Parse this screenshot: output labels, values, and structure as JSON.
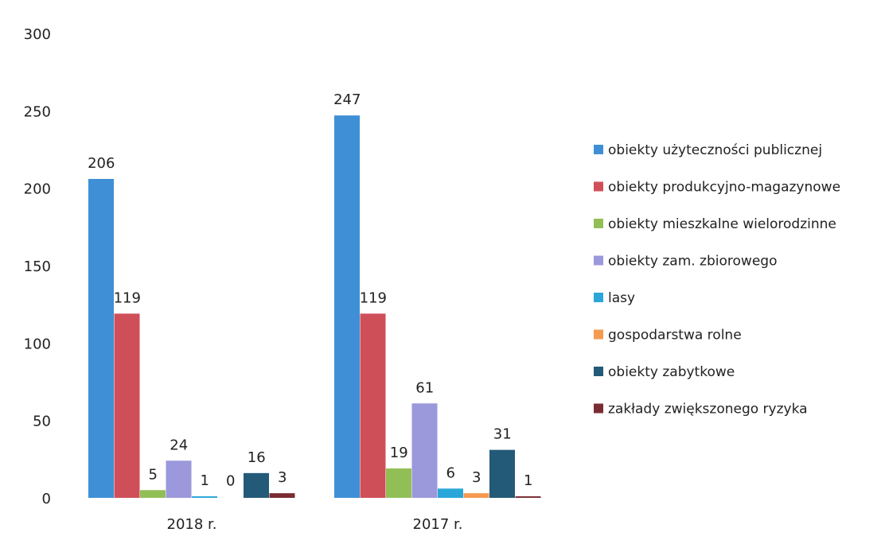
{
  "chart_data": {
    "type": "bar",
    "categories": [
      "2018 r.",
      "2017 r."
    ],
    "series": [
      {
        "name": "obiekty użyteczności publicznej",
        "values": [
          206,
          247
        ],
        "color": "#3f8fd6"
      },
      {
        "name": "obiekty produkcyjno-magazynowe",
        "values": [
          119,
          119
        ],
        "color": "#cf4f59"
      },
      {
        "name": "obiekty mieszkalne wielorodzinne",
        "values": [
          5,
          19
        ],
        "color": "#92bf55"
      },
      {
        "name": "obiekty zam. zbiorowego",
        "values": [
          24,
          61
        ],
        "color": "#9b98db"
      },
      {
        "name": "lasy",
        "values": [
          1,
          6
        ],
        "color": "#2aa7d8"
      },
      {
        "name": "gospodarstwa rolne",
        "values": [
          0,
          3
        ],
        "color": "#f59a4f"
      },
      {
        "name": "obiekty zabytkowe",
        "values": [
          16,
          31
        ],
        "color": "#235a78"
      },
      {
        "name": "zakłady zwiększonego ryzyka",
        "values": [
          3,
          1
        ],
        "color": "#7a2c32"
      }
    ],
    "ylim": [
      0,
      300
    ],
    "yticks": [
      0,
      50,
      100,
      150,
      200,
      250,
      300
    ],
    "grid": false,
    "legend": "right",
    "title": "",
    "xlabel": "",
    "ylabel": ""
  }
}
